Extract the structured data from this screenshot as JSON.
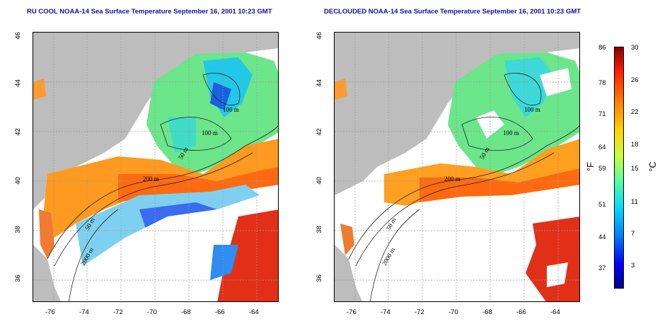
{
  "panels": [
    {
      "title": "RU COOL NOAA-14 Sea Surface Temperature September 16, 2001 10:23 GMT",
      "contours": [
        "100 m",
        "100 m",
        "50 m",
        "200 m",
        "50 m",
        "2000 m"
      ]
    },
    {
      "title": "DECLOUDED NOAA-14 Sea Surface Temperature September 16, 2001 10:23 GMT",
      "contours": [
        "100 m",
        "100 m",
        "50 m",
        "200 m",
        "50 m",
        "2000 m"
      ]
    }
  ],
  "axes": {
    "x_ticks": [
      "-76",
      "-74",
      "-72",
      "-70",
      "-68",
      "-66",
      "-64"
    ],
    "y_ticks": [
      "46",
      "44",
      "42",
      "40",
      "38",
      "36"
    ]
  },
  "colorbar": {
    "f_ticks": [
      "86",
      "78",
      "71",
      "64",
      "59",
      "51",
      "44",
      "37"
    ],
    "c_ticks": [
      "30",
      "26",
      "22",
      "18",
      "15",
      "11",
      "7",
      "3"
    ],
    "f_unit": "°F",
    "c_unit": "°C"
  },
  "colors": {
    "land": "#bdbdbd",
    "title": "#1010a0",
    "warm": "#e8401c",
    "cool": "#2fd8e0"
  }
}
